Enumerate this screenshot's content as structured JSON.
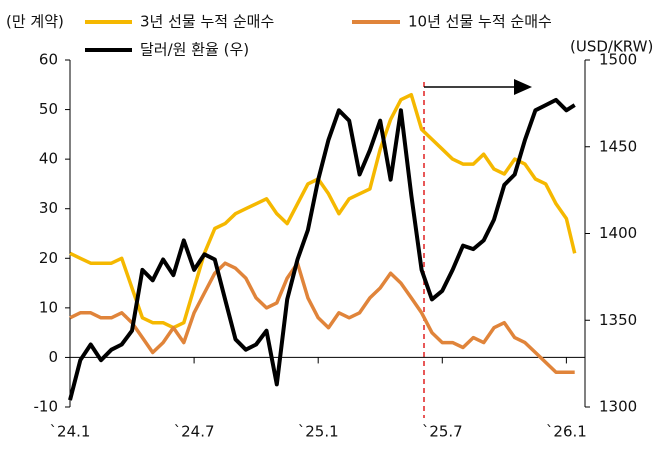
{
  "chart_data": {
    "type": "line",
    "y_unit_label": "(만 계약)",
    "y2_unit_label": "(USD/KRW)",
    "x": [
      0,
      0.5,
      1,
      1.5,
      2,
      2.5,
      3,
      3.5,
      4,
      4.5,
      5,
      5.5,
      6,
      6.5,
      7,
      7.5,
      8,
      8.5,
      9,
      9.5,
      10,
      10.5,
      11,
      11.5,
      12,
      12.5,
      13,
      13.5,
      14,
      14.5,
      15,
      15.5,
      16,
      16.5,
      17,
      17.5,
      18,
      18.5,
      19,
      19.5,
      20,
      20.5,
      21,
      21.5,
      22,
      22.5,
      23,
      23.5,
      24,
      24.4
    ],
    "xlim": [
      0,
      24.9
    ],
    "xticks": [
      {
        "value": 0,
        "label": "`24.1"
      },
      {
        "value": 6,
        "label": "`24.7"
      },
      {
        "value": 12,
        "label": "`25.1"
      },
      {
        "value": 18,
        "label": "`25.7"
      },
      {
        "value": 24,
        "label": "`26.1"
      }
    ],
    "ylim": [
      -10,
      60
    ],
    "yticks": [
      -10,
      0,
      10,
      20,
      30,
      40,
      50,
      60
    ],
    "y2lim": [
      1300,
      1500
    ],
    "y2ticks": [
      1300,
      1350,
      1400,
      1450,
      1500
    ],
    "series": [
      {
        "name": "3년 선물 누적 순매수",
        "color": "#f5b800",
        "values": [
          21,
          20,
          19,
          19,
          19,
          20,
          14,
          8,
          7,
          7,
          6,
          7,
          14,
          21,
          26,
          27,
          29,
          30,
          31,
          32,
          29,
          27,
          31,
          35,
          36,
          33,
          29,
          32,
          33,
          34,
          42,
          48,
          52,
          53,
          46,
          44,
          42,
          40,
          39,
          39,
          41,
          38,
          37,
          40,
          39,
          36,
          35,
          31,
          28,
          21
        ]
      },
      {
        "name": "10년 선물 누적 순매수",
        "color": "#e0843a",
        "values": [
          8,
          9,
          9,
          8,
          8,
          9,
          7,
          4,
          1,
          3,
          6,
          3,
          9,
          13,
          17,
          19,
          18,
          16,
          12,
          10,
          11,
          16,
          19,
          12,
          8,
          6,
          9,
          8,
          9,
          12,
          14,
          17,
          15,
          12,
          9,
          5,
          3,
          3,
          2,
          4,
          3,
          6,
          7,
          4,
          3,
          1,
          -1,
          -3,
          -3,
          -3
        ]
      },
      {
        "name": "달러/원 환율 (우)",
        "color": "#000000",
        "axis": "y2",
        "values": [
          1304,
          1327,
          1336,
          1327,
          1333,
          1336,
          1344,
          1379,
          1373,
          1385,
          1376,
          1396,
          1379,
          1388,
          1385,
          1362,
          1339,
          1333,
          1336,
          1344,
          1313,
          1362,
          1385,
          1402,
          1431,
          1454,
          1471,
          1465,
          1434,
          1448,
          1465,
          1431,
          1471,
          1422,
          1379,
          1362,
          1367,
          1379,
          1393,
          1391,
          1396,
          1408,
          1428,
          1434,
          1454,
          1471,
          1474,
          1477,
          1471,
          1474
        ]
      }
    ]
  }
}
